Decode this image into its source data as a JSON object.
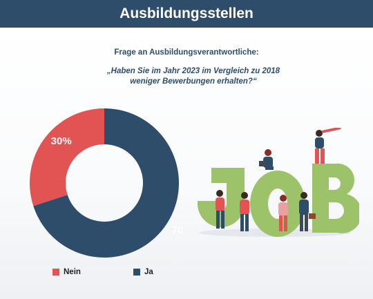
{
  "header": {
    "title": "Ausbildungsstellen"
  },
  "question": {
    "label": "Frage an Ausbildungsverantwortliche:",
    "line1": "„Haben Sie im Jahr 2023 im Vergleich zu 2018",
    "line2": "weniger Bewerbungen erhalten?“"
  },
  "chart_data": {
    "type": "pie",
    "donut": true,
    "slices": [
      {
        "label": "Nein",
        "value": 30,
        "display": "30%",
        "color": "#e25353"
      },
      {
        "label": "Ja",
        "value": 70,
        "display": "70%",
        "color": "#2e4d6b"
      }
    ],
    "legend_position": "bottom"
  },
  "illustration": {
    "word": "JOB",
    "letter_color": "#9cc26a"
  }
}
